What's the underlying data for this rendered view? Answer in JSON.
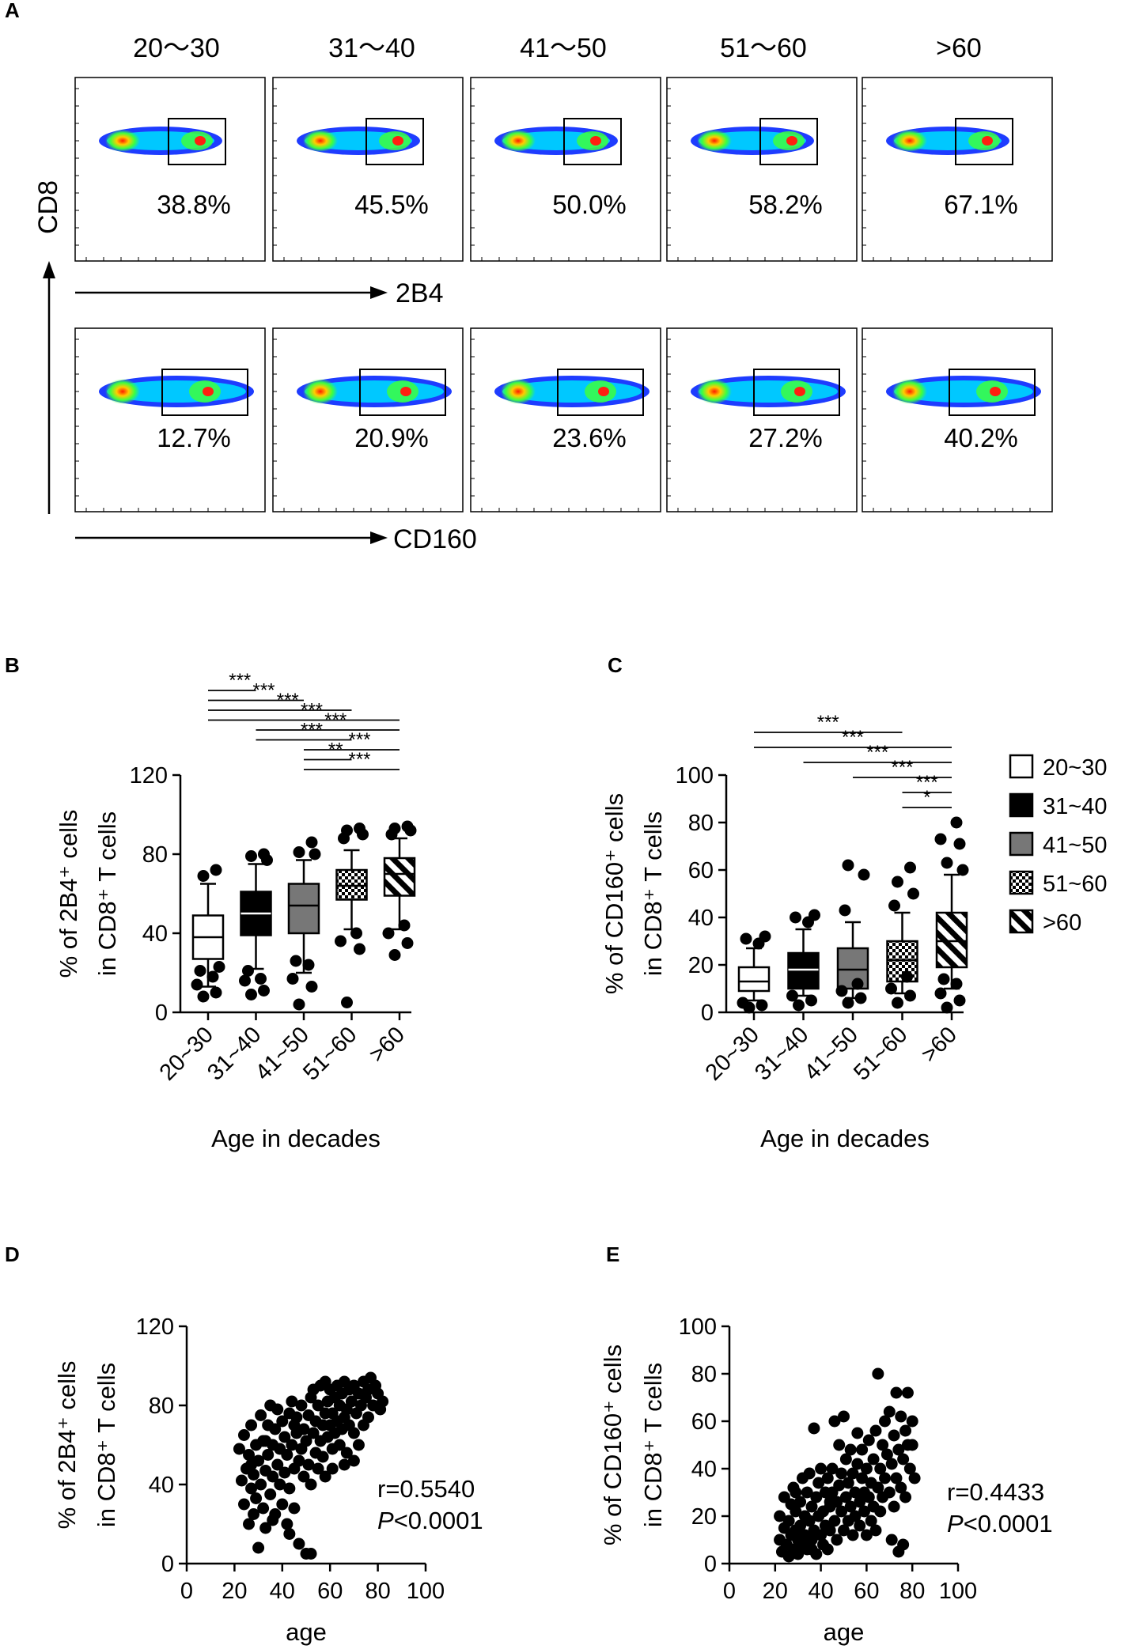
{
  "panel_letters": [
    "A",
    "B",
    "C",
    "D",
    "E"
  ],
  "colors": {
    "ink": "#000000",
    "box_gray": "#777777",
    "flow_blue": "#1e3cff",
    "flow_red": "#ff2010"
  },
  "panelA": {
    "age_groups": [
      "20～30",
      "31～40",
      "41～50",
      "51～60",
      ">60"
    ],
    "row1": {
      "marker": "2B4",
      "percentages": [
        "38.8%",
        "45.5%",
        "50.0%",
        "58.2%",
        "67.1%"
      ]
    },
    "row2": {
      "marker": "CD160",
      "percentages": [
        "12.7%",
        "20.9%",
        "23.6%",
        "27.2%",
        "40.2%"
      ]
    },
    "y_marker": "CD8"
  },
  "legend": {
    "items": [
      {
        "label": "20~30",
        "style": "white"
      },
      {
        "label": "31~40",
        "style": "black"
      },
      {
        "label": "41~50",
        "style": "gray"
      },
      {
        "label": "51~60",
        "style": "checker"
      },
      {
        "label": ">60",
        "style": "stripe"
      }
    ]
  },
  "chart_data": [
    {
      "id": "B",
      "type": "box",
      "xlabel": "Age in decades",
      "ylabel_line1": "% of 2B4⁺ cells",
      "ylabel_line2": "in CD8⁺ T cells",
      "ylim": [
        0,
        120
      ],
      "yticks": [
        0,
        40,
        80,
        120
      ],
      "categories": [
        "20~30",
        "31~40",
        "41~50",
        "51~60",
        ">60"
      ],
      "boxes": [
        {
          "q1": 27,
          "median": 38,
          "q3": 49,
          "whisker_low": 13,
          "whisker_high": 65,
          "outliers": [
            8,
            10,
            14,
            18,
            21,
            23,
            69,
            72
          ]
        },
        {
          "q1": 39,
          "median": 50,
          "q3": 61,
          "whisker_low": 22,
          "whisker_high": 75,
          "outliers": [
            9,
            11,
            16,
            17,
            21,
            77,
            79,
            80
          ]
        },
        {
          "q1": 40,
          "median": 54,
          "q3": 65,
          "whisker_low": 20,
          "whisker_high": 77,
          "outliers": [
            4,
            13,
            17,
            24,
            26,
            80,
            81,
            86
          ]
        },
        {
          "q1": 57,
          "median": 64,
          "q3": 72,
          "whisker_low": 42,
          "whisker_high": 82,
          "outliers": [
            5,
            32,
            36,
            40,
            88,
            90,
            92,
            93
          ]
        },
        {
          "q1": 59,
          "median": 70,
          "q3": 78,
          "whisker_low": 42,
          "whisker_high": 88,
          "outliers": [
            29,
            35,
            40,
            44,
            90,
            92,
            93,
            94
          ]
        }
      ],
      "significance": [
        {
          "from": 0,
          "to": 1,
          "label": "***"
        },
        {
          "from": 0,
          "to": 2,
          "label": "***"
        },
        {
          "from": 0,
          "to": 3,
          "label": "***"
        },
        {
          "from": 0,
          "to": 4,
          "label": "***"
        },
        {
          "from": 1,
          "to": 4,
          "label": "***"
        },
        {
          "from": 1,
          "to": 3,
          "label": "***"
        },
        {
          "from": 2,
          "to": 4,
          "label": "***"
        },
        {
          "from": 2,
          "to": 3,
          "label": "**"
        },
        {
          "from": 2,
          "to": 4,
          "label": "***"
        }
      ]
    },
    {
      "id": "C",
      "type": "box",
      "xlabel": "Age in decades",
      "ylabel_line1": "% of CD160⁺ cells",
      "ylabel_line2": "in CD8⁺ T cells",
      "ylim": [
        0,
        100
      ],
      "yticks": [
        0,
        20,
        40,
        60,
        80,
        100
      ],
      "categories": [
        "20~30",
        "31~40",
        "41~50",
        "51~60",
        ">60"
      ],
      "boxes": [
        {
          "q1": 9,
          "median": 13,
          "q3": 19,
          "whisker_low": 5,
          "whisker_high": 27,
          "outliers": [
            2,
            3,
            4,
            29,
            31,
            32
          ]
        },
        {
          "q1": 10,
          "median": 18,
          "q3": 25,
          "whisker_low": 7,
          "whisker_high": 35,
          "outliers": [
            3,
            5,
            7,
            38,
            40,
            41
          ]
        },
        {
          "q1": 10,
          "median": 18,
          "q3": 27,
          "whisker_low": 6,
          "whisker_high": 38,
          "outliers": [
            4,
            6,
            9,
            12,
            43,
            58,
            62
          ]
        },
        {
          "q1": 13,
          "median": 22,
          "q3": 30,
          "whisker_low": 8,
          "whisker_high": 42,
          "outliers": [
            4,
            7,
            10,
            15,
            45,
            50,
            55,
            61
          ]
        },
        {
          "q1": 19,
          "median": 30,
          "q3": 42,
          "whisker_low": 10,
          "whisker_high": 58,
          "outliers": [
            2,
            5,
            8,
            12,
            14,
            60,
            63,
            71,
            73,
            80
          ]
        }
      ],
      "significance": [
        {
          "from": 0,
          "to": 3,
          "label": "***"
        },
        {
          "from": 0,
          "to": 4,
          "label": "***"
        },
        {
          "from": 1,
          "to": 4,
          "label": "***"
        },
        {
          "from": 2,
          "to": 4,
          "label": "***"
        },
        {
          "from": 3,
          "to": 4,
          "label": "***"
        },
        {
          "from": 3,
          "to": 4,
          "label": "*"
        }
      ]
    },
    {
      "id": "D",
      "type": "scatter",
      "xlabel": "age",
      "ylabel_line1": "% of 2B4⁺ cells",
      "ylabel_line2": "in CD8⁺ T cells",
      "xlim": [
        0,
        100
      ],
      "xticks": [
        0,
        20,
        40,
        60,
        80,
        100
      ],
      "ylim": [
        0,
        120
      ],
      "yticks": [
        0,
        40,
        80,
        120
      ],
      "r": "r=0.5540",
      "p_italic": "P",
      "p_value": "<0.0001",
      "points": [
        [
          22,
          58
        ],
        [
          23,
          42
        ],
        [
          24,
          30
        ],
        [
          24,
          65
        ],
        [
          25,
          48
        ],
        [
          26,
          20
        ],
        [
          26,
          55
        ],
        [
          27,
          38
        ],
        [
          27,
          70
        ],
        [
          28,
          25
        ],
        [
          28,
          45
        ],
        [
          29,
          60
        ],
        [
          29,
          33
        ],
        [
          30,
          8
        ],
        [
          30,
          52
        ],
        [
          31,
          40
        ],
        [
          31,
          75
        ],
        [
          32,
          28
        ],
        [
          32,
          62
        ],
        [
          33,
          47
        ],
        [
          33,
          18
        ],
        [
          34,
          55
        ],
        [
          34,
          70
        ],
        [
          35,
          35
        ],
        [
          35,
          80
        ],
        [
          36,
          44
        ],
        [
          36,
          60
        ],
        [
          37,
          25
        ],
        [
          37,
          68
        ],
        [
          38,
          50
        ],
        [
          38,
          78
        ],
        [
          39,
          40
        ],
        [
          39,
          58
        ],
        [
          40,
          30
        ],
        [
          40,
          72
        ],
        [
          41,
          46
        ],
        [
          41,
          64
        ],
        [
          42,
          20
        ],
        [
          42,
          55
        ],
        [
          43,
          76
        ],
        [
          43,
          38
        ],
        [
          44,
          60
        ],
        [
          44,
          82
        ],
        [
          45,
          48
        ],
        [
          45,
          28
        ],
        [
          46,
          66
        ],
        [
          46,
          74
        ],
        [
          47,
          52
        ],
        [
          47,
          10
        ],
        [
          48,
          58
        ],
        [
          48,
          80
        ],
        [
          49,
          44
        ],
        [
          49,
          68
        ],
        [
          50,
          5
        ],
        [
          50,
          62
        ],
        [
          51,
          75
        ],
        [
          51,
          50
        ],
        [
          52,
          84
        ],
        [
          52,
          40
        ],
        [
          53,
          66
        ],
        [
          53,
          88
        ],
        [
          54,
          56
        ],
        [
          54,
          72
        ],
        [
          55,
          48
        ],
        [
          55,
          80
        ],
        [
          56,
          62
        ],
        [
          56,
          90
        ],
        [
          57,
          70
        ],
        [
          57,
          54
        ],
        [
          58,
          76
        ],
        [
          58,
          44
        ],
        [
          59,
          82
        ],
        [
          59,
          64
        ],
        [
          60,
          70
        ],
        [
          60,
          88
        ],
        [
          61,
          58
        ],
        [
          61,
          76
        ],
        [
          62,
          84
        ],
        [
          62,
          66
        ],
        [
          63,
          90
        ],
        [
          63,
          72
        ],
        [
          64,
          60
        ],
        [
          64,
          80
        ],
        [
          65,
          86
        ],
        [
          65,
          68
        ],
        [
          66,
          92
        ],
        [
          66,
          74
        ],
        [
          67,
          78
        ],
        [
          67,
          56
        ],
        [
          68,
          88
        ],
        [
          68,
          70
        ],
        [
          69,
          82
        ],
        [
          70,
          66
        ],
        [
          70,
          90
        ],
        [
          71,
          76
        ],
        [
          72,
          86
        ],
        [
          72,
          60
        ],
        [
          73,
          80
        ],
        [
          74,
          92
        ],
        [
          74,
          70
        ],
        [
          75,
          84
        ],
        [
          76,
          88
        ],
        [
          76,
          74
        ],
        [
          77,
          94
        ],
        [
          78,
          80
        ],
        [
          79,
          90
        ],
        [
          80,
          86
        ],
        [
          81,
          78
        ],
        [
          82,
          82
        ],
        [
          52,
          5
        ],
        [
          33,
          62
        ],
        [
          27,
          50
        ],
        [
          45,
          70
        ],
        [
          58,
          92
        ],
        [
          36,
          22
        ],
        [
          43,
          15
        ],
        [
          61,
          48
        ],
        [
          66,
          50
        ],
        [
          70,
          52
        ]
      ]
    },
    {
      "id": "E",
      "type": "scatter",
      "xlabel": "age",
      "ylabel_line1": "% of CD160⁺ cells",
      "ylabel_line2": "in CD8⁺ T cells",
      "xlim": [
        0,
        100
      ],
      "xticks": [
        0,
        20,
        40,
        60,
        80,
        100
      ],
      "ylim": [
        0,
        100
      ],
      "yticks": [
        0,
        20,
        40,
        60,
        80,
        100
      ],
      "r": "r=0.4433",
      "p_italic": "P",
      "p_value": "<0.0001",
      "points": [
        [
          22,
          10
        ],
        [
          22,
          20
        ],
        [
          23,
          5
        ],
        [
          24,
          15
        ],
        [
          24,
          28
        ],
        [
          25,
          8
        ],
        [
          26,
          18
        ],
        [
          26,
          3
        ],
        [
          27,
          12
        ],
        [
          27,
          25
        ],
        [
          28,
          6
        ],
        [
          28,
          32
        ],
        [
          29,
          14
        ],
        [
          29,
          22
        ],
        [
          30,
          4
        ],
        [
          30,
          10
        ],
        [
          31,
          26
        ],
        [
          31,
          16
        ],
        [
          32,
          8
        ],
        [
          32,
          36
        ],
        [
          33,
          20
        ],
        [
          33,
          12
        ],
        [
          34,
          30
        ],
        [
          34,
          6
        ],
        [
          35,
          18
        ],
        [
          35,
          38
        ],
        [
          36,
          10
        ],
        [
          36,
          24
        ],
        [
          37,
          14
        ],
        [
          37,
          57
        ],
        [
          38,
          28
        ],
        [
          38,
          4
        ],
        [
          39,
          20
        ],
        [
          39,
          34
        ],
        [
          40,
          12
        ],
        [
          40,
          40
        ],
        [
          41,
          22
        ],
        [
          41,
          8
        ],
        [
          42,
          30
        ],
        [
          42,
          16
        ],
        [
          43,
          36
        ],
        [
          43,
          6
        ],
        [
          44,
          24
        ],
        [
          44,
          14
        ],
        [
          45,
          40
        ],
        [
          45,
          30
        ],
        [
          46,
          18
        ],
        [
          46,
          60
        ],
        [
          47,
          26
        ],
        [
          47,
          10
        ],
        [
          48,
          33
        ],
        [
          48,
          50
        ],
        [
          49,
          22
        ],
        [
          49,
          38
        ],
        [
          50,
          14
        ],
        [
          50,
          62
        ],
        [
          51,
          28
        ],
        [
          51,
          44
        ],
        [
          52,
          18
        ],
        [
          52,
          34
        ],
        [
          53,
          24
        ],
        [
          53,
          48
        ],
        [
          54,
          12
        ],
        [
          54,
          38
        ],
        [
          55,
          30
        ],
        [
          55,
          20
        ],
        [
          56,
          42
        ],
        [
          56,
          55
        ],
        [
          57,
          26
        ],
        [
          57,
          16
        ],
        [
          58,
          36
        ],
        [
          58,
          48
        ],
        [
          59,
          22
        ],
        [
          59,
          30
        ],
        [
          60,
          40
        ],
        [
          60,
          12
        ],
        [
          61,
          28
        ],
        [
          61,
          52
        ],
        [
          62,
          18
        ],
        [
          62,
          34
        ],
        [
          63,
          44
        ],
        [
          63,
          24
        ],
        [
          64,
          56
        ],
        [
          64,
          14
        ],
        [
          65,
          80
        ],
        [
          65,
          32
        ],
        [
          66,
          40
        ],
        [
          66,
          22
        ],
        [
          67,
          50
        ],
        [
          67,
          28
        ],
        [
          68,
          60
        ],
        [
          68,
          36
        ],
        [
          69,
          46
        ],
        [
          70,
          30
        ],
        [
          70,
          64
        ],
        [
          71,
          42
        ],
        [
          72,
          24
        ],
        [
          72,
          54
        ],
        [
          73,
          72
        ],
        [
          73,
          36
        ],
        [
          74,
          48
        ],
        [
          75,
          32
        ],
        [
          75,
          62
        ],
        [
          76,
          44
        ],
        [
          77,
          56
        ],
        [
          77,
          28
        ],
        [
          78,
          50
        ],
        [
          78,
          72
        ],
        [
          79,
          40
        ],
        [
          80,
          60
        ],
        [
          80,
          50
        ],
        [
          81,
          36
        ],
        [
          74,
          5
        ],
        [
          76,
          8
        ],
        [
          71,
          10
        ],
        [
          44,
          26
        ],
        [
          29,
          30
        ],
        [
          36,
          6
        ]
      ]
    }
  ]
}
